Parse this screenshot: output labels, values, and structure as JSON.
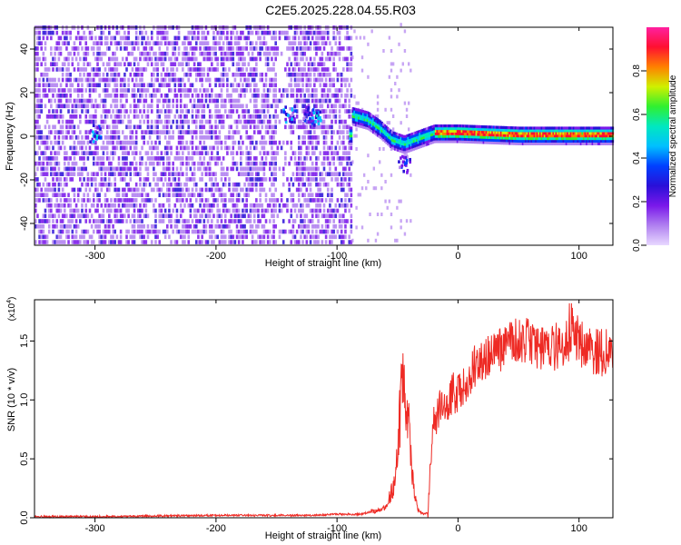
{
  "title": "C2E5.2025.228.04.55.R03",
  "chart_data": [
    {
      "type": "heatmap",
      "xlabel": "Height of straight line (km)",
      "ylabel": "Frequency (Hz)",
      "xlim": [
        -350,
        128
      ],
      "ylim": [
        -50,
        50
      ],
      "x_ticks": [
        -300,
        -200,
        -100,
        0,
        100
      ],
      "y_ticks": [
        -40,
        -20,
        0,
        20,
        40
      ],
      "colorbar": {
        "label": "Normalized spectral amplitude",
        "range": [
          0,
          1
        ],
        "ticks": [
          0.0,
          0.2,
          0.4,
          0.6,
          0.8
        ]
      },
      "signal_track": [
        {
          "x": -88,
          "y": 9
        },
        {
          "x": -75,
          "y": 7
        },
        {
          "x": -65,
          "y": 3
        },
        {
          "x": -55,
          "y": -2
        },
        {
          "x": -45,
          "y": -4
        },
        {
          "x": -35,
          "y": -2
        },
        {
          "x": -20,
          "y": 1
        },
        {
          "x": 0,
          "y": 1
        },
        {
          "x": 50,
          "y": 0
        },
        {
          "x": 128,
          "y": 0
        }
      ],
      "grid": false
    },
    {
      "type": "line",
      "xlabel": "Height of straight line (km)",
      "ylabel": "SNR (10 * v/v)",
      "y_multiplier": "(x10",
      "y_multiplier_exp": "4",
      "y_multiplier_close": ")",
      "xlim": [
        -350,
        128
      ],
      "ylim": [
        0,
        1.85
      ],
      "x_ticks": [
        -300,
        -200,
        -100,
        0,
        100
      ],
      "y_ticks": [
        "0.0",
        "0.5",
        "1.0",
        "1.5"
      ],
      "series": [
        {
          "color": "#ee2a24",
          "x": [
            -350,
            -300,
            -200,
            -120,
            -100,
            -80,
            -60,
            -52,
            -48,
            -45,
            -42,
            -40,
            -38,
            -35,
            -32,
            -28,
            -25,
            -22,
            -20,
            -18,
            -15,
            -12,
            -10,
            -5,
            0,
            5,
            10,
            15,
            20,
            25,
            30,
            40,
            50,
            60,
            70,
            80,
            90,
            95,
            100,
            110,
            120,
            128
          ],
          "y": [
            0.01,
            0.01,
            0.02,
            0.02,
            0.03,
            0.03,
            0.08,
            0.3,
            0.9,
            1.15,
            1.0,
            0.7,
            0.4,
            0.15,
            0.05,
            0.03,
            0.05,
            0.6,
            0.9,
            0.8,
            0.95,
            1.0,
            0.85,
            1.05,
            1.05,
            1.1,
            1.2,
            1.3,
            1.3,
            1.35,
            1.4,
            1.45,
            1.5,
            1.5,
            1.45,
            1.45,
            1.5,
            1.6,
            1.5,
            1.42,
            1.4,
            1.4
          ]
        }
      ],
      "grid": false
    }
  ],
  "colors": {
    "heat_scale": [
      "#e8d8ff",
      "#b080f0",
      "#7a18ea",
      "#2a10d8",
      "#0040ff",
      "#00c0ff",
      "#00e8c0",
      "#30f030",
      "#d0f000",
      "#ff8000",
      "#ff1030",
      "#ff20a0"
    ],
    "line": "#ee2a24"
  }
}
